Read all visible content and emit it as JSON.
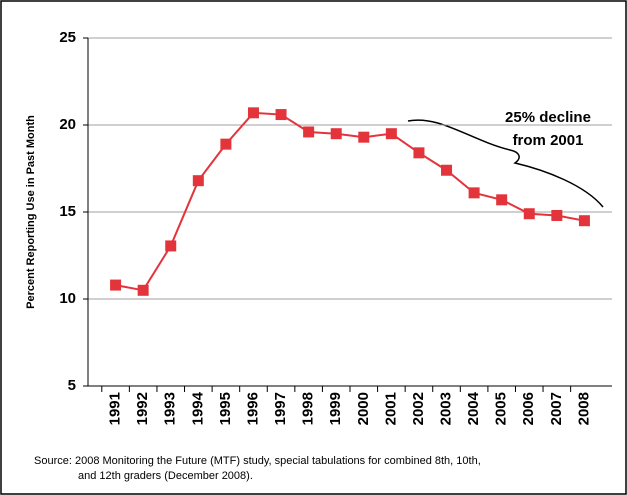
{
  "chart_data": {
    "type": "line",
    "y_label": "Percent Reporting Use in Past Month",
    "categories": [
      "1991",
      "1992",
      "1993",
      "1994",
      "1995",
      "1996",
      "1997",
      "1998",
      "1999",
      "2000",
      "2001",
      "2002",
      "2003",
      "2004",
      "2005",
      "2006",
      "2007",
      "2008"
    ],
    "series": [
      {
        "color": "#e3343b",
        "values": [
          10.8,
          10.5,
          13.05,
          16.8,
          18.9,
          20.7,
          20.6,
          19.6,
          19.5,
          19.3,
          19.5,
          18.4,
          17.4,
          16.1,
          15.7,
          14.9,
          14.8,
          14.5
        ]
      }
    ],
    "ylim": [
      5,
      25
    ],
    "yticks": [
      5,
      10,
      15,
      20,
      25
    ],
    "grid": true,
    "annotation": [
      "25% decline",
      "from 2001"
    ],
    "source": [
      "Source: 2008 Monitoring the Future (MTF) study, special tabulations for combined 8th, 10th,",
      "and 12th graders (December 2008)."
    ]
  }
}
